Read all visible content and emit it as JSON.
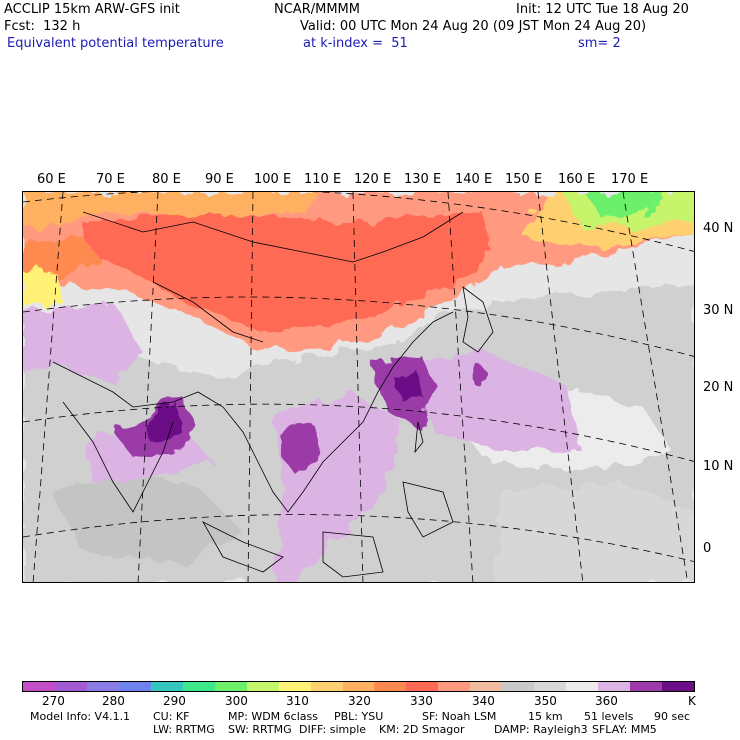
{
  "header": {
    "model_line": "ACCLIP 15km ARW-GFS init",
    "org": "NCAR/MMMM",
    "init": "Init: 12 UTC Tue 18 Aug 20",
    "fcst": "Fcst:  132 h",
    "valid": "Valid: 00 UTC Mon 24 Aug 20 (09 JST Mon 24 Aug 20)",
    "field_name": "Equivalent potential temperature",
    "level": "at k-index =  51",
    "smoothing": "sm= 2"
  },
  "map": {
    "lon_labels": [
      "60 E",
      "70 E",
      "80 E",
      "90 E",
      "100 E",
      "110 E",
      "120 E",
      "130 E",
      "140 E",
      "150 E",
      "160 E",
      "170 E"
    ],
    "lat_labels": [
      "40 N",
      "30 N",
      "20 N",
      "10 N",
      "0"
    ]
  },
  "colorbar": {
    "colors": [
      "#c24fc8",
      "#a35bd3",
      "#8a7ee6",
      "#6f82ee",
      "#34c6c0",
      "#3de88a",
      "#6cf06c",
      "#c6f46a",
      "#fff276",
      "#ffd070",
      "#ffb060",
      "#ff8a50",
      "#ff6a55",
      "#ff9a80",
      "#f2bca0",
      "#c9c9c9",
      "#d7d7d7",
      "#ececec",
      "#dcb4e4",
      "#9b3aa8",
      "#6a0f86"
    ],
    "labels": [
      "270",
      "280",
      "290",
      "300",
      "310",
      "320",
      "330",
      "340",
      "350",
      "360"
    ],
    "unit": "K"
  },
  "model_info": {
    "line1": [
      "Model Info: V4.1.1",
      "CU: KF",
      "MP: WDM 6class",
      "PBL: YSU",
      "SF: Noah LSM",
      "15 km",
      "51 levels",
      "90 sec"
    ],
    "line2": [
      "LW: RRTMG",
      "SW: RRTMG",
      "DIFF: simple",
      "KM: 2D Smagor",
      "DAMP: Rayleigh3",
      "SFLAY: MM5"
    ]
  }
}
